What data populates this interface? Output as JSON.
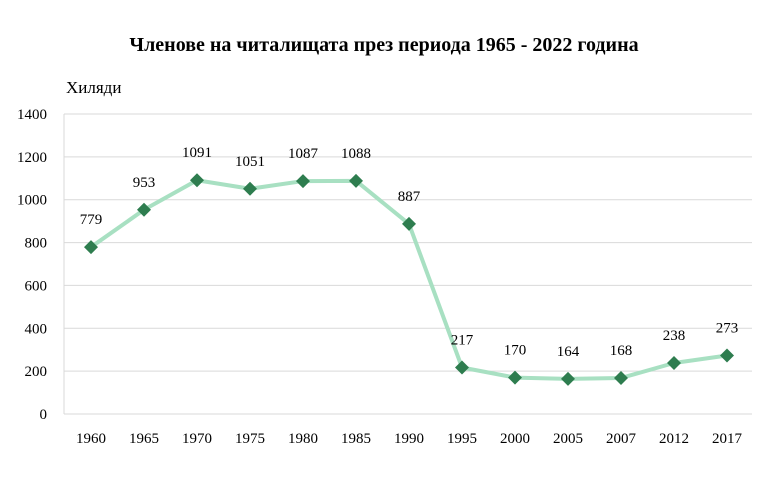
{
  "chart_data": {
    "type": "line",
    "title": "Членове на читалищата през периода 1965 - 2022 година",
    "ylabel": "Хиляди",
    "xlabel": "",
    "categories": [
      "1960",
      "1965",
      "1970",
      "1975",
      "1980",
      "1985",
      "1990",
      "1995",
      "2000",
      "2005",
      "2007",
      "2012",
      "2017"
    ],
    "series": [
      {
        "values": [
          779,
          953,
          1091,
          1051,
          1087,
          1088,
          887,
          217,
          170,
          164,
          168,
          238,
          273
        ]
      }
    ],
    "ylim": [
      0,
      1400
    ],
    "yticks": [
      0,
      200,
      400,
      600,
      800,
      1000,
      1200,
      1400
    ],
    "grid": true,
    "legend": "none",
    "colors": {
      "line": "#a8e0c2",
      "marker": "#2e7d4f",
      "grid": "#d9d9d9"
    }
  }
}
